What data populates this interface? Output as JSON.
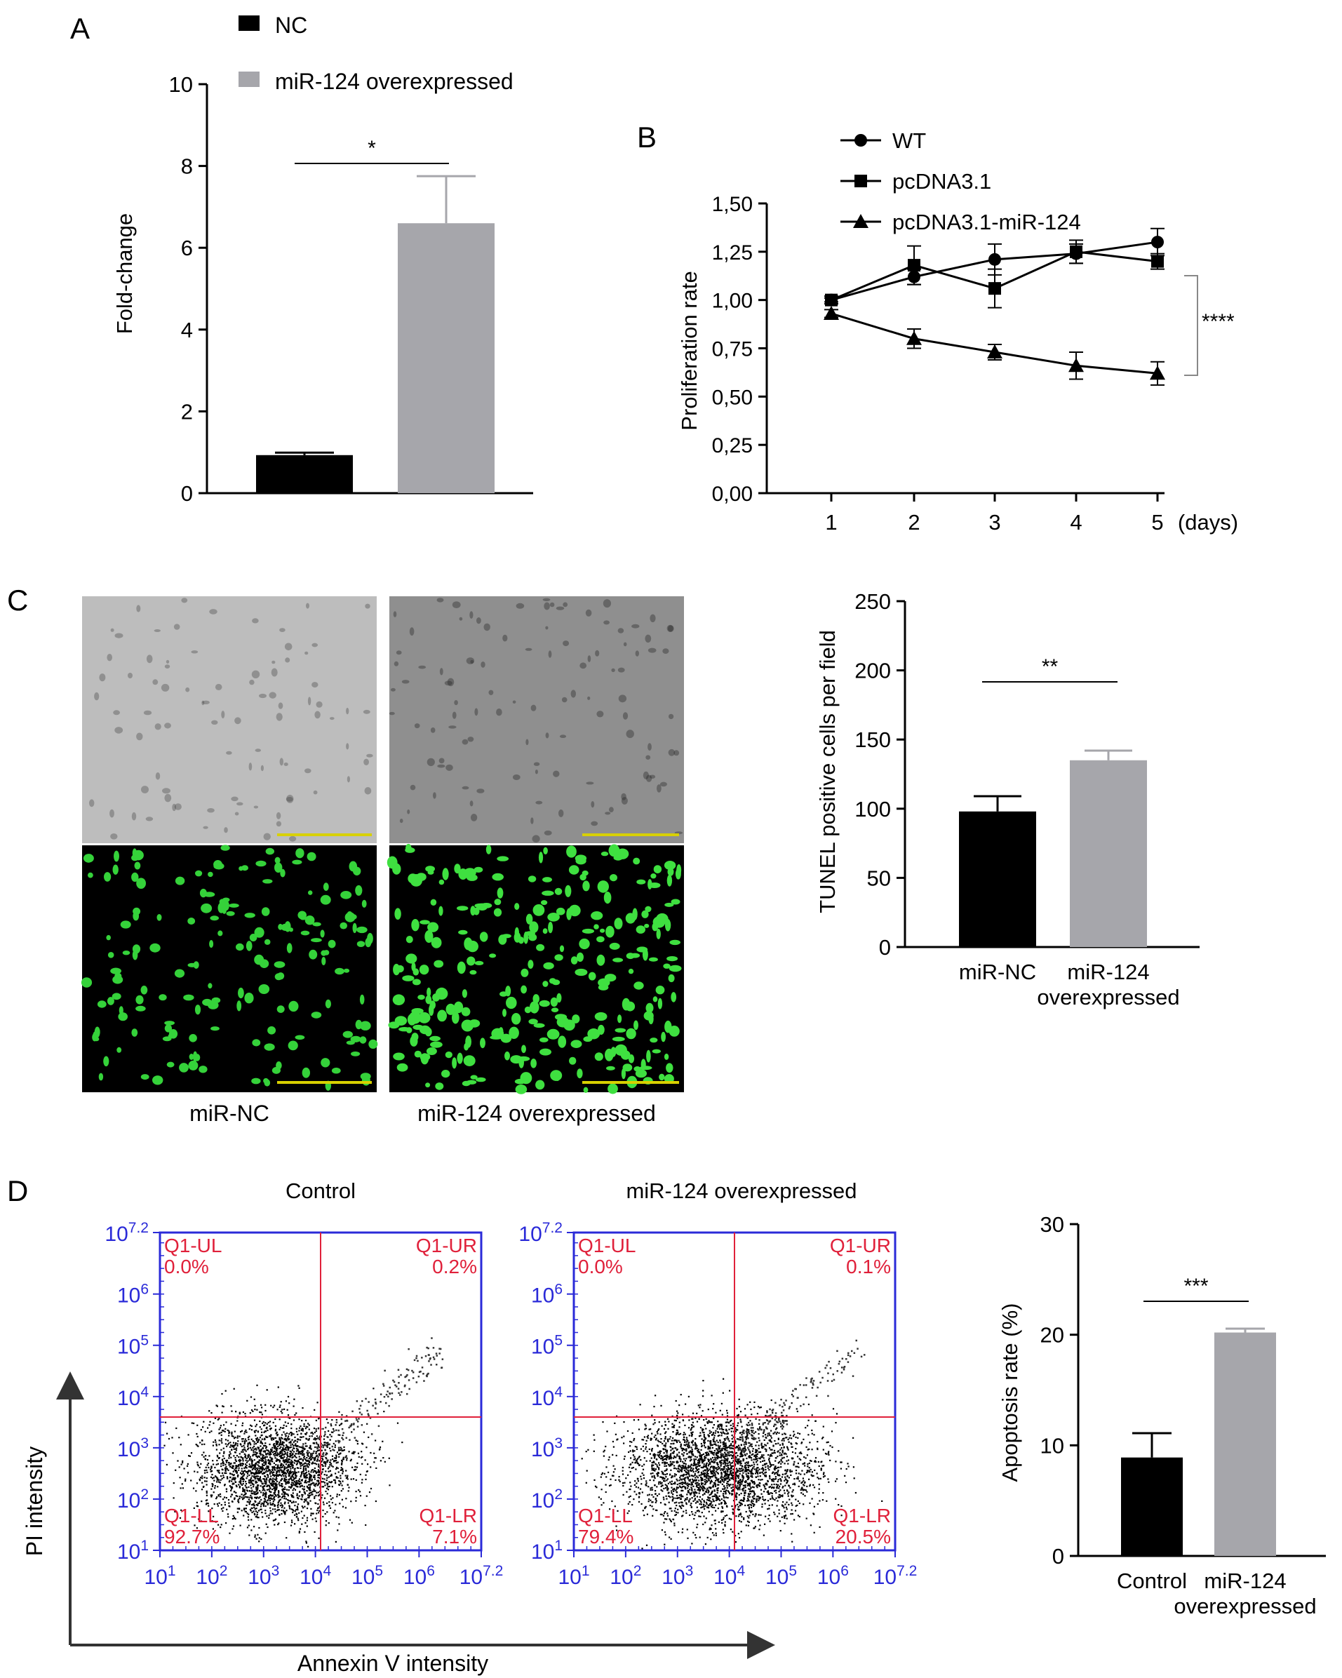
{
  "panels": {
    "A": {
      "label": "A",
      "chart_data": {
        "type": "bar",
        "categories": [
          "NC",
          "miR-124 overexpressed"
        ],
        "values": [
          0.93,
          6.6
        ],
        "errors": [
          0.06,
          1.15
        ],
        "colors": [
          "#000000",
          "#a6a6ab"
        ],
        "ylabel": "Fold-change",
        "yticks": [
          0,
          2,
          4,
          6,
          8,
          10
        ],
        "ylim": [
          0,
          10
        ],
        "legend": [
          "NC",
          "miR-124 overexpressed"
        ],
        "legend_position": "top",
        "significance": "*"
      }
    },
    "B": {
      "label": "B",
      "chart_data": {
        "type": "line",
        "x": [
          1,
          2,
          3,
          4,
          5
        ],
        "xunit": "(days)",
        "ylabel": "Proliferation rate",
        "yticks": [
          "0,00",
          "0,25",
          "0,50",
          "0,75",
          "1,00",
          "1,25",
          "1,50"
        ],
        "ylim": [
          0,
          1.5
        ],
        "series": [
          {
            "name": "WT",
            "marker": "circle",
            "values": [
              1.0,
              1.12,
              1.21,
              1.24,
              1.3
            ],
            "errors": [
              0.01,
              0.04,
              0.08,
              0.05,
              0.07
            ]
          },
          {
            "name": "pcDNA3.1",
            "marker": "square",
            "values": [
              1.0,
              1.18,
              1.06,
              1.25,
              1.2
            ],
            "errors": [
              0.02,
              0.1,
              0.1,
              0.06,
              0.04
            ]
          },
          {
            "name": "pcDNA3.1-miR-124",
            "marker": "triangle",
            "values": [
              0.93,
              0.8,
              0.73,
              0.66,
              0.62
            ],
            "errors": [
              0.02,
              0.05,
              0.04,
              0.07,
              0.06
            ]
          }
        ],
        "significance": "****"
      }
    },
    "C": {
      "label": "C",
      "image_captions": [
        "miR-NC",
        "miR-124 overexpressed"
      ],
      "chart_data": {
        "type": "bar",
        "categories": [
          "miR-NC",
          "miR-124 overexpressed"
        ],
        "values": [
          98,
          135
        ],
        "errors": [
          11,
          7
        ],
        "colors": [
          "#000000",
          "#a6a6ab"
        ],
        "ylabel": "TUNEL positive cells per field",
        "yticks": [
          0,
          50,
          100,
          150,
          200,
          250
        ],
        "ylim": [
          0,
          250
        ],
        "significance": "**"
      }
    },
    "D": {
      "label": "D",
      "flow": [
        {
          "title": "Control",
          "quadrants": {
            "UL": "Q1-UL",
            "UL_val": "0.0%",
            "UR": "Q1-UR",
            "UR_val": "0.2%",
            "LL": "Q1-LL",
            "LL_val": "92.7%",
            "LR": "Q1-LR",
            "LR_val": "7.1%"
          }
        },
        {
          "title": "miR-124 overexpressed",
          "quadrants": {
            "UL": "Q1-UL",
            "UL_val": "0.0%",
            "UR": "Q1-UR",
            "UR_val": "0.1%",
            "LL": "Q1-LL",
            "LL_val": "79.4%",
            "LR": "Q1-LR",
            "LR_val": "20.5%"
          }
        }
      ],
      "flow_axis_base": "10",
      "flow_axis_exps": [
        "1",
        "2",
        "3",
        "4",
        "5",
        "6",
        "7.2"
      ],
      "ylabel_flow": "PI intensity",
      "xlabel_flow": "Annexin V intensity",
      "chart_data": {
        "type": "bar",
        "categories": [
          "Control",
          "miR-124 overexpressed"
        ],
        "values": [
          8.9,
          20.2
        ],
        "errors": [
          2.2,
          0.35
        ],
        "colors": [
          "#000000",
          "#a6a6ab"
        ],
        "ylabel": "Apoptosis rate (%)",
        "yticks": [
          0,
          10,
          20,
          30
        ],
        "ylim": [
          0,
          30
        ],
        "significance": "***"
      }
    }
  }
}
